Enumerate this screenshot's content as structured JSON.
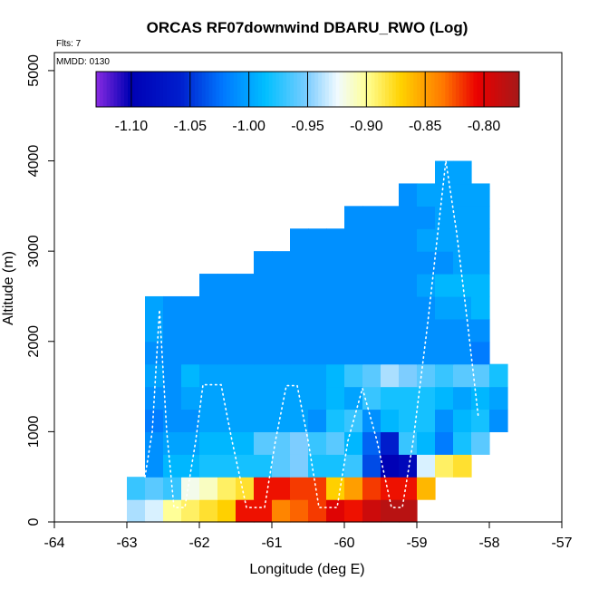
{
  "chart_data": {
    "type": "heatmap",
    "title": "ORCAS RF07downwind DBARU_RWO (Log)",
    "flights_label": "Flts: 7",
    "date_label": "MMDD: 0130",
    "xlabel": "Longitude (deg E)",
    "ylabel": "Altitude (m)",
    "xlim": [
      -64,
      -57
    ],
    "ylim": [
      0,
      5200
    ],
    "x_ticks": [
      -64,
      -63,
      -62,
      -61,
      -60,
      -59,
      -58,
      -57
    ],
    "y_ticks": [
      0,
      1000,
      2000,
      3000,
      4000,
      5000
    ],
    "colorbar": {
      "range": [
        -1.13,
        -0.77
      ],
      "ticks": [
        -1.1,
        -1.05,
        -1.0,
        -0.95,
        -0.9,
        -0.85,
        -0.8
      ],
      "tick_labels": [
        "-1.10",
        "-1.05",
        "-1.00",
        "-0.95",
        "-0.90",
        "-0.85",
        "-0.80"
      ]
    },
    "grid": false,
    "cell_width_deg": 0.25,
    "cell_height_m": 250,
    "rows": [
      {
        "altitude": 0,
        "lon_start": -63.0,
        "values": [
          -0.94,
          -0.93,
          -0.9,
          -0.89,
          -0.88,
          -0.87,
          -0.81,
          -0.81,
          -0.84,
          -0.83,
          -0.82,
          -0.8,
          -0.81,
          -0.79,
          -0.78,
          -0.78
        ]
      },
      {
        "altitude": 250,
        "lon_start": -63.0,
        "values": [
          -0.97,
          -0.96,
          -0.97,
          -0.92,
          -0.91,
          -0.89,
          -0.88,
          -0.81,
          -0.81,
          -0.82,
          -0.82,
          -0.87,
          -0.85,
          -0.82,
          -0.81,
          -0.81,
          -0.86
        ]
      },
      {
        "altitude": 500,
        "lon_start": -62.75,
        "values": [
          -1.01,
          -0.99,
          -0.99,
          -0.98,
          -0.98,
          -0.98,
          -0.98,
          -0.96,
          -0.95,
          -0.98,
          -0.98,
          -0.97,
          -1.04,
          -1.1,
          -1.09,
          -0.93,
          -0.89,
          -0.88
        ]
      },
      {
        "altitude": 750,
        "lon_start": -62.75,
        "values": [
          -1.01,
          -1.0,
          -1.0,
          -0.99,
          -0.99,
          -0.99,
          -0.96,
          -0.96,
          -0.95,
          -0.97,
          -0.96,
          -0.99,
          -1.03,
          -1.06,
          -0.97,
          -0.99,
          -1.02,
          -0.98,
          -0.96
        ]
      },
      {
        "altitude": 1000,
        "lon_start": -62.75,
        "values": [
          -1.02,
          -1.01,
          -1.01,
          -1.0,
          -1.0,
          -1.0,
          -1.0,
          -1.0,
          -1.0,
          -1.01,
          -0.98,
          -0.97,
          -1.01,
          -0.99,
          -0.98,
          -0.98,
          -1.01,
          -0.99,
          -0.98,
          -1.01
        ]
      },
      {
        "altitude": 1250,
        "lon_start": -62.75,
        "values": [
          -1.01,
          -1.01,
          -1.0,
          -1.0,
          -1.0,
          -1.0,
          -1.0,
          -1.0,
          -1.0,
          -1.0,
          -0.99,
          -1.0,
          -0.97,
          -0.98,
          -0.98,
          -0.98,
          -0.99,
          -1.0,
          -0.99,
          -1.0
        ]
      },
      {
        "altitude": 1500,
        "lon_start": -62.75,
        "values": [
          -1.0,
          -1.01,
          -0.99,
          -1.0,
          -1.0,
          -1.0,
          -1.0,
          -1.0,
          -1.0,
          -1.0,
          -0.99,
          -0.97,
          -0.96,
          -0.94,
          -0.95,
          -0.96,
          -0.97,
          -0.96,
          -0.96,
          -0.98
        ]
      },
      {
        "altitude": 1750,
        "lon_start": -62.75,
        "values": [
          -1.01,
          -1.01,
          -1.01,
          -1.01,
          -1.01,
          -1.01,
          -1.01,
          -1.01,
          -1.01,
          -1.01,
          -1.01,
          -1.01,
          -1.01,
          -1.01,
          -1.01,
          -1.01,
          -1.01,
          -1.01,
          -1.02
        ]
      },
      {
        "altitude": 2000,
        "lon_start": -62.75,
        "values": [
          -1.0,
          -1.01,
          -1.01,
          -1.01,
          -1.01,
          -1.01,
          -1.01,
          -1.01,
          -1.01,
          -1.01,
          -1.01,
          -1.01,
          -1.01,
          -1.01,
          -1.01,
          -1.01,
          -1.01,
          -1.01,
          -1.01
        ]
      },
      {
        "altitude": 2250,
        "lon_start": -62.75,
        "values": [
          -1.0,
          -1.01,
          -1.01,
          -1.01,
          -1.01,
          -1.01,
          -1.01,
          -1.01,
          -1.01,
          -1.01,
          -1.01,
          -1.01,
          -1.01,
          -1.01,
          -1.01,
          -1.01,
          -1.0,
          -1.0,
          -0.99
        ]
      },
      {
        "altitude": 2500,
        "lon_start": -62.0,
        "values": [
          -1.01,
          -1.01,
          -1.01,
          -1.01,
          -1.01,
          -1.01,
          -1.01,
          -1.01,
          -1.01,
          -1.01,
          -1.01,
          -1.01,
          -1.0,
          -0.99,
          -0.99,
          -0.99
        ]
      },
      {
        "altitude": 2750,
        "lon_start": -61.25,
        "values": [
          -1.01,
          -1.01,
          -1.01,
          -1.01,
          -1.01,
          -1.01,
          -1.01,
          -1.01,
          -1.01,
          -1.01,
          -1.01,
          -1.0,
          -1.0
        ]
      },
      {
        "altitude": 3000,
        "lon_start": -60.75,
        "values": [
          -1.01,
          -1.01,
          -1.01,
          -1.01,
          -1.01,
          -1.01,
          -1.01,
          -1.0,
          -1.0,
          -1.0,
          -1.0
        ]
      },
      {
        "altitude": 3250,
        "lon_start": -60.0,
        "values": [
          -1.01,
          -1.01,
          -1.01,
          -1.01,
          -1.01,
          -1.0,
          -1.0,
          -1.0
        ]
      },
      {
        "altitude": 3500,
        "lon_start": -59.25,
        "values": [
          -1.01,
          -1.0,
          -1.0,
          -1.0,
          -1.0
        ]
      },
      {
        "altitude": 3750,
        "lon_start": -58.75,
        "values": [
          -1.0,
          -1.0
        ]
      }
    ],
    "flight_track": [
      [
        -62.75,
        500
      ],
      [
        -62.65,
        1000
      ],
      [
        -62.55,
        2350
      ],
      [
        -62.45,
        1000
      ],
      [
        -62.35,
        160
      ],
      [
        -62.2,
        160
      ],
      [
        -62.05,
        900
      ],
      [
        -61.95,
        1520
      ],
      [
        -61.7,
        1520
      ],
      [
        -61.55,
        900
      ],
      [
        -61.35,
        160
      ],
      [
        -61.1,
        160
      ],
      [
        -60.95,
        900
      ],
      [
        -60.8,
        1510
      ],
      [
        -60.65,
        1510
      ],
      [
        -60.5,
        900
      ],
      [
        -60.35,
        160
      ],
      [
        -60.1,
        160
      ],
      [
        -59.95,
        900
      ],
      [
        -59.75,
        1480
      ],
      [
        -59.55,
        900
      ],
      [
        -59.35,
        160
      ],
      [
        -59.2,
        160
      ],
      [
        -59.05,
        900
      ],
      [
        -58.85,
        2200
      ],
      [
        -58.6,
        4000
      ],
      [
        -58.45,
        3200
      ],
      [
        -58.3,
        2200
      ],
      [
        -58.15,
        1150
      ]
    ]
  }
}
